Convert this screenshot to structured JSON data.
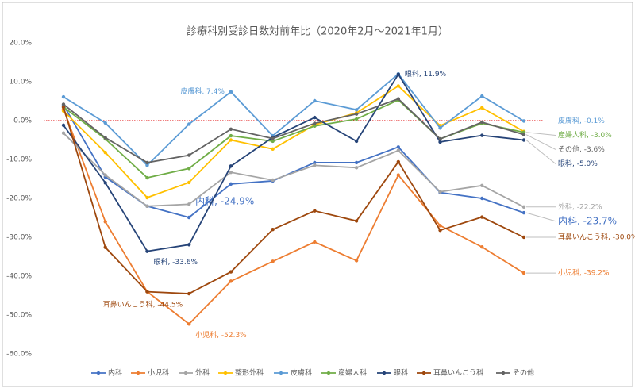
{
  "chart_data": {
    "type": "line",
    "title": "診療科別受診日数対前年比（2020年2月～2021年1月）",
    "categories": [
      null,
      null,
      null,
      null,
      null,
      null,
      null,
      null,
      null,
      null,
      null,
      null
    ],
    "ylim": [
      -60,
      20
    ],
    "yticks": [
      {
        "value": -60,
        "label": "-60.0%"
      },
      {
        "value": -50,
        "label": "-50.0%"
      },
      {
        "value": -40,
        "label": "-40.0%"
      },
      {
        "value": -30,
        "label": "-30.0%"
      },
      {
        "value": -20,
        "label": "-20.0%"
      },
      {
        "value": -10,
        "label": "-10.0%"
      },
      {
        "value": 0,
        "label": "0.0%"
      },
      {
        "value": 10,
        "label": "10.0%"
      },
      {
        "value": 20,
        "label": "20.0%"
      }
    ],
    "grid": false,
    "zero_line_color": "#e00000",
    "legend": "bottom",
    "series": [
      {
        "name": "内科",
        "color": "#4472c4",
        "values": [
          4.0,
          -14.5,
          -22.0,
          -24.9,
          -16.3,
          -15.5,
          -10.8,
          -10.8,
          -6.8,
          -18.5,
          -20.0,
          -23.7
        ],
        "value_labels": [
          null,
          null,
          null,
          "内科, -24.9%",
          null,
          null,
          null,
          null,
          null,
          null,
          null,
          "内科, -23.7%"
        ]
      },
      {
        "name": "小児科",
        "color": "#ed7d31",
        "values": [
          3.0,
          -26.0,
          -44.0,
          -52.3,
          -41.3,
          -36.2,
          -31.2,
          -36.0,
          -14.0,
          -27.0,
          -32.5,
          -39.2
        ],
        "value_labels": [
          null,
          null,
          null,
          "小児科, -52.3%",
          null,
          null,
          null,
          null,
          null,
          null,
          null,
          "小児科, -39.2%"
        ]
      },
      {
        "name": "外科",
        "color": "#a5a5a5",
        "values": [
          -3.2,
          -14.0,
          -22.0,
          -21.5,
          -13.3,
          -15.3,
          -11.5,
          -12.1,
          -7.7,
          -18.3,
          -16.7,
          -22.2
        ],
        "value_labels": [
          null,
          null,
          null,
          null,
          null,
          null,
          null,
          null,
          null,
          null,
          null,
          "外科, -22.2%"
        ]
      },
      {
        "name": "整形外科",
        "color": "#ffc000",
        "values": [
          2.5,
          -8.2,
          -19.8,
          -15.9,
          -5.0,
          -7.3,
          -1.1,
          2.0,
          8.9,
          -1.3,
          3.3,
          -2.8
        ]
      },
      {
        "name": "皮膚科",
        "color": "#5b9bd5",
        "values": [
          6.1,
          -0.6,
          -11.5,
          -0.9,
          7.4,
          -3.9,
          5.1,
          2.8,
          12.0,
          -1.9,
          6.3,
          -0.1
        ],
        "value_labels": [
          null,
          null,
          null,
          null,
          "皮膚科, 7.4%",
          null,
          null,
          null,
          null,
          null,
          null,
          "皮膚科, -0.1%"
        ]
      },
      {
        "name": "産婦人科",
        "color": "#70ad47",
        "values": [
          3.5,
          -4.7,
          -14.7,
          -12.3,
          -3.9,
          -5.3,
          -1.4,
          0.4,
          5.3,
          -4.7,
          -0.7,
          -3.0
        ],
        "value_labels": [
          null,
          null,
          null,
          null,
          null,
          null,
          null,
          null,
          null,
          null,
          null,
          "産婦人科, -3.0%"
        ]
      },
      {
        "name": "眼科",
        "color": "#264478",
        "values": [
          -1.2,
          -16.0,
          -33.6,
          -31.9,
          -11.7,
          -4.3,
          0.8,
          -5.3,
          11.9,
          -5.5,
          -3.8,
          -5.0
        ],
        "value_labels": [
          null,
          null,
          "眼科, -33.6%",
          null,
          null,
          null,
          null,
          null,
          "眼科, 11.9%",
          null,
          null,
          "眼科, -5.0%"
        ]
      },
      {
        "name": "耳鼻いんこう科",
        "color": "#9e480e",
        "values": [
          3.5,
          -32.6,
          -44.0,
          -44.5,
          -38.9,
          -28.0,
          -23.2,
          -25.8,
          -10.6,
          -28.2,
          -24.8,
          -30.0
        ],
        "value_labels": [
          null,
          null,
          null,
          "耳鼻いんこう科, -44.5%",
          null,
          null,
          null,
          null,
          null,
          null,
          null,
          "耳鼻いんこう科, -30.0%"
        ]
      },
      {
        "name": "その他",
        "color": "#636363",
        "values": [
          4.2,
          -4.4,
          -10.8,
          -8.9,
          -2.2,
          -4.6,
          -0.7,
          1.7,
          5.6,
          -4.7,
          -0.4,
          -3.6
        ],
        "value_labels": [
          null,
          null,
          null,
          null,
          null,
          null,
          null,
          null,
          null,
          null,
          null,
          "その他, -3.6%"
        ]
      }
    ]
  }
}
